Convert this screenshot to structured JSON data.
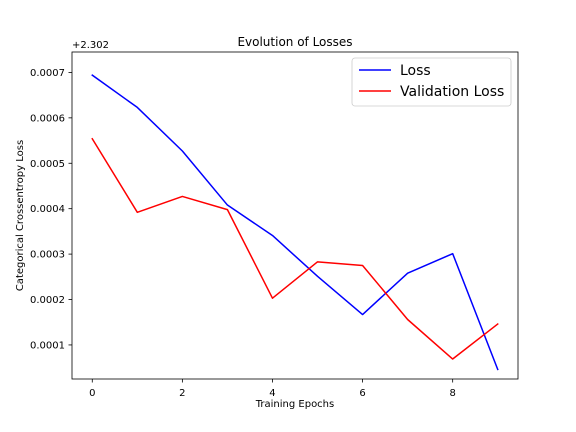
{
  "chart_data": {
    "type": "line",
    "title": "Evolution of Losses",
    "xlabel": "Training Epochs",
    "ylabel": "Categorical Crossentropy Loss",
    "offset_label": "+2.302",
    "xlim": [
      -0.45,
      9.45
    ],
    "ylim": [
      2.5e-05,
      0.000745
    ],
    "xticks": [
      0,
      2,
      4,
      6,
      8
    ],
    "xtick_labels": [
      "0",
      "2",
      "4",
      "6",
      "8"
    ],
    "yticks": [
      0.0001,
      0.0002,
      0.0003,
      0.0004,
      0.0005,
      0.0006,
      0.0007
    ],
    "ytick_labels": [
      "0.0001",
      "0.0002",
      "0.0003",
      "0.0004",
      "0.0005",
      "0.0006",
      "0.0007"
    ],
    "grid": false,
    "legend_position": "top-right",
    "x": [
      0,
      1,
      2,
      3,
      4,
      5,
      6,
      7,
      8,
      9
    ],
    "series": [
      {
        "name": "Loss",
        "color": "#0000ff",
        "values": [
          0.000694,
          0.000623,
          0.000527,
          0.000408,
          0.000341,
          0.000251,
          0.000167,
          0.000258,
          0.000301,
          4.6e-05
        ]
      },
      {
        "name": "Validation Loss",
        "color": "#ff0000",
        "values": [
          0.000554,
          0.000392,
          0.000427,
          0.000398,
          0.000203,
          0.000283,
          0.000275,
          0.000156,
          6.9e-05,
          0.000146
        ]
      }
    ]
  }
}
